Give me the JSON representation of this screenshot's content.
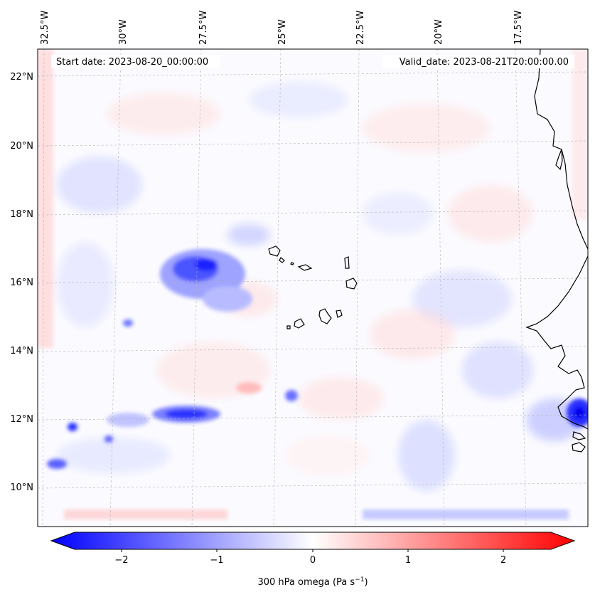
{
  "header": {
    "start_date": "Start date: 2023-08-20_00:00:00",
    "valid_date": "Valid_date: 2023-08-21T20:00:00.00"
  },
  "map": {
    "lon_labels": [
      "32.5°W",
      "30°W",
      "27.5°W",
      "25°W",
      "22.5°W",
      "20°W",
      "17.5°W"
    ],
    "lat_labels": [
      "22°N",
      "20°N",
      "18°N",
      "16°N",
      "14°N",
      "12°N",
      "10°N"
    ],
    "field_colormap": "bwr",
    "colors": {
      "negative": "#0000ff",
      "neutral": "#ffffff",
      "positive": "#ff0000",
      "coast": "#000000",
      "grid": "#b0b0b0"
    }
  },
  "colorbar": {
    "ticks": [
      "−2",
      "−1",
      "0",
      "1",
      "2"
    ],
    "label": "300 hPa omega (Pa s",
    "label_sup": "−1",
    "label_end": ")",
    "range": [
      -2.7,
      2.7
    ]
  }
}
